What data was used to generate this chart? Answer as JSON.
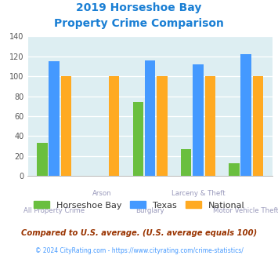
{
  "title_line1": "2019 Horseshoe Bay",
  "title_line2": "Property Crime Comparison",
  "title_color": "#1a7fd4",
  "categories": [
    "All Property Crime",
    "Arson",
    "Burglary",
    "Larceny & Theft",
    "Motor Vehicle Theft"
  ],
  "horseshoe_bay": [
    33,
    0,
    74,
    27,
    13
  ],
  "texas": [
    115,
    0,
    116,
    112,
    122
  ],
  "national": [
    100,
    100,
    100,
    100,
    100
  ],
  "color_hsb": "#6abf3f",
  "color_texas": "#4499ff",
  "color_national": "#ffaa22",
  "ylim": [
    0,
    140
  ],
  "yticks": [
    0,
    20,
    40,
    60,
    80,
    100,
    120,
    140
  ],
  "bg_color": "#ddeef2",
  "legend_labels": [
    "Horseshoe Bay",
    "Texas",
    "National"
  ],
  "footnote1": "Compared to U.S. average. (U.S. average equals 100)",
  "footnote2": "© 2024 CityRating.com - https://www.cityrating.com/crime-statistics/",
  "footnote1_color": "#993300",
  "footnote2_color": "#4499ff",
  "label_color": "#9999bb"
}
